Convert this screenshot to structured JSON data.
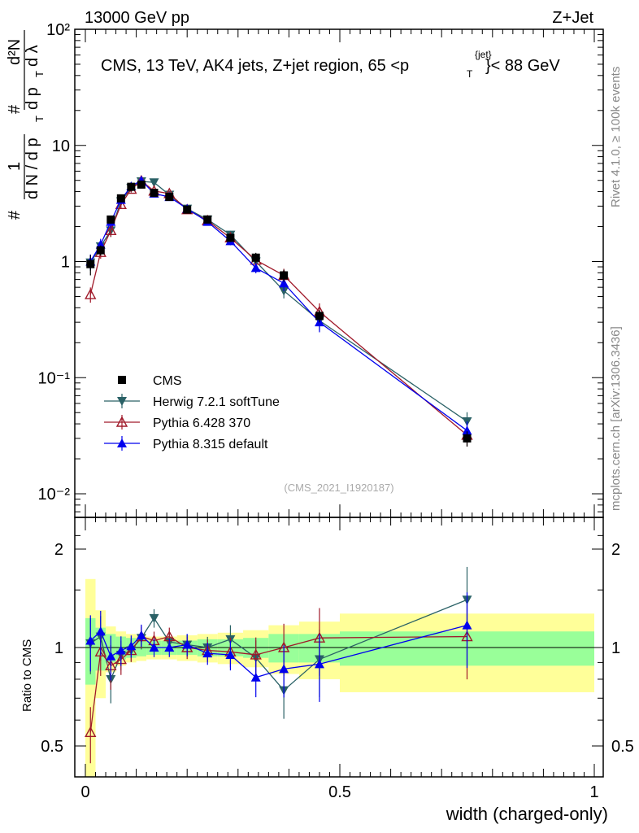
{
  "header": {
    "left": "13000 GeV pp",
    "right": "Z+Jet"
  },
  "side": {
    "rivet": "Rivet 4.1.0, ≥ 100k events",
    "mcplots": "mcplots.cern.ch [arXiv:1306.3436]"
  },
  "chart_data": {
    "type": "line",
    "title": "CMS, 13 TeV, AK4 jets, Z+jet region, 65 <p",
    "title_sup": "{jet}",
    "title_sub": "T",
    "title_end": "}< 88 GeV",
    "analysis_tag": "(CMS_2021_I1920187)",
    "xlabel": "width (charged-only)",
    "ylabel_parts": {
      "hash": "#",
      "one": "1",
      "dN": "d N / d p",
      "dN_sub": "T",
      "hash2": "#",
      "d2N": "d²N",
      "dpt": "d p",
      "dpt_sub": "T",
      "dlam": "d λ"
    },
    "ylabel_ratio": "Ratio to CMS",
    "xlim": [
      0,
      1
    ],
    "ylim": [
      0.01,
      100
    ],
    "ratio_ylim": [
      0.35,
      2.3
    ],
    "x_ticks": [
      "0",
      "0.5",
      "1"
    ],
    "y_ticks": [
      "10⁻²",
      "10⁻¹",
      "1",
      "10",
      "10²"
    ],
    "ratio_ticks": [
      "0.5",
      "1",
      "2"
    ],
    "legend": {
      "placement": "lower-left",
      "entries": [
        "CMS",
        "Herwig 7.2.1 softTune",
        "Pythia 6.428 370",
        "Pythia 8.315 default"
      ]
    },
    "x": [
      0.01,
      0.03,
      0.05,
      0.07,
      0.09,
      0.11,
      0.135,
      0.165,
      0.2,
      0.24,
      0.285,
      0.335,
      0.39,
      0.46,
      0.75
    ],
    "bin_edges": [
      0.0,
      0.02,
      0.04,
      0.06,
      0.08,
      0.1,
      0.12,
      0.15,
      0.18,
      0.22,
      0.26,
      0.31,
      0.36,
      0.42,
      0.5,
      1.0
    ],
    "series": [
      {
        "name": "CMS",
        "color": "#000000",
        "marker": "square",
        "values": [
          0.95,
          1.25,
          2.3,
          3.5,
          4.4,
          4.6,
          3.9,
          3.6,
          2.8,
          2.3,
          1.6,
          1.08,
          0.76,
          0.34,
          0.03
        ]
      },
      {
        "name": "Herwig 7.2.1 softTune",
        "color": "#2a6166",
        "marker": "triangle-down",
        "values": [
          0.98,
          1.35,
          1.85,
          3.3,
          4.3,
          4.9,
          4.8,
          3.75,
          2.85,
          2.3,
          1.7,
          1.0,
          0.56,
          0.31,
          0.042
        ]
      },
      {
        "name": "Pythia 6.428 370",
        "color": "#a01a2a",
        "marker": "triangle-open",
        "values": [
          0.52,
          1.2,
          1.85,
          3.1,
          4.2,
          4.95,
          4.05,
          3.85,
          2.8,
          2.25,
          1.6,
          1.03,
          0.76,
          0.37,
          0.032
        ]
      },
      {
        "name": "Pythia 8.315 default",
        "color": "#0000ee",
        "marker": "triangle",
        "values": [
          1.0,
          1.4,
          2.2,
          3.4,
          4.45,
          5.0,
          3.85,
          3.6,
          2.85,
          2.2,
          1.5,
          0.88,
          0.65,
          0.3,
          0.035
        ]
      }
    ],
    "cms_rel_err": [
      0.2,
      0.1,
      0.08,
      0.06,
      0.05,
      0.05,
      0.05,
      0.05,
      0.05,
      0.06,
      0.08,
      0.1,
      0.12,
      0.12,
      0.15
    ],
    "mc_rel_err": [
      0.15,
      0.12,
      0.12,
      0.08,
      0.06,
      0.06,
      0.05,
      0.05,
      0.06,
      0.06,
      0.08,
      0.1,
      0.14,
      0.18,
      0.2
    ],
    "ratio_band_green": [
      0.23,
      0.15,
      0.1,
      0.08,
      0.07,
      0.06,
      0.05,
      0.05,
      0.05,
      0.06,
      0.06,
      0.07,
      0.1,
      0.1,
      0.12
    ],
    "ratio_band_yellow": [
      0.62,
      0.3,
      0.16,
      0.12,
      0.1,
      0.09,
      0.08,
      0.08,
      0.09,
      0.1,
      0.11,
      0.13,
      0.17,
      0.2,
      0.27
    ],
    "ratios": [
      {
        "name": "Herwig 7.2.1 softTune",
        "values": [
          1.03,
          1.08,
          0.8,
          0.95,
          0.98,
          1.07,
          1.23,
          1.04,
          1.02,
          1.0,
          1.06,
          0.93,
          0.74,
          0.92,
          1.4
        ]
      },
      {
        "name": "Pythia 6.428 370",
        "values": [
          0.55,
          0.97,
          0.88,
          0.92,
          0.98,
          1.08,
          1.05,
          1.08,
          1.0,
          0.98,
          0.97,
          0.95,
          1.0,
          1.07,
          1.08
        ]
      },
      {
        "name": "Pythia 8.315 default",
        "values": [
          1.05,
          1.12,
          0.94,
          0.98,
          1.01,
          1.09,
          1.0,
          1.0,
          1.02,
          0.96,
          0.95,
          0.81,
          0.86,
          0.89,
          1.17
        ]
      }
    ]
  }
}
